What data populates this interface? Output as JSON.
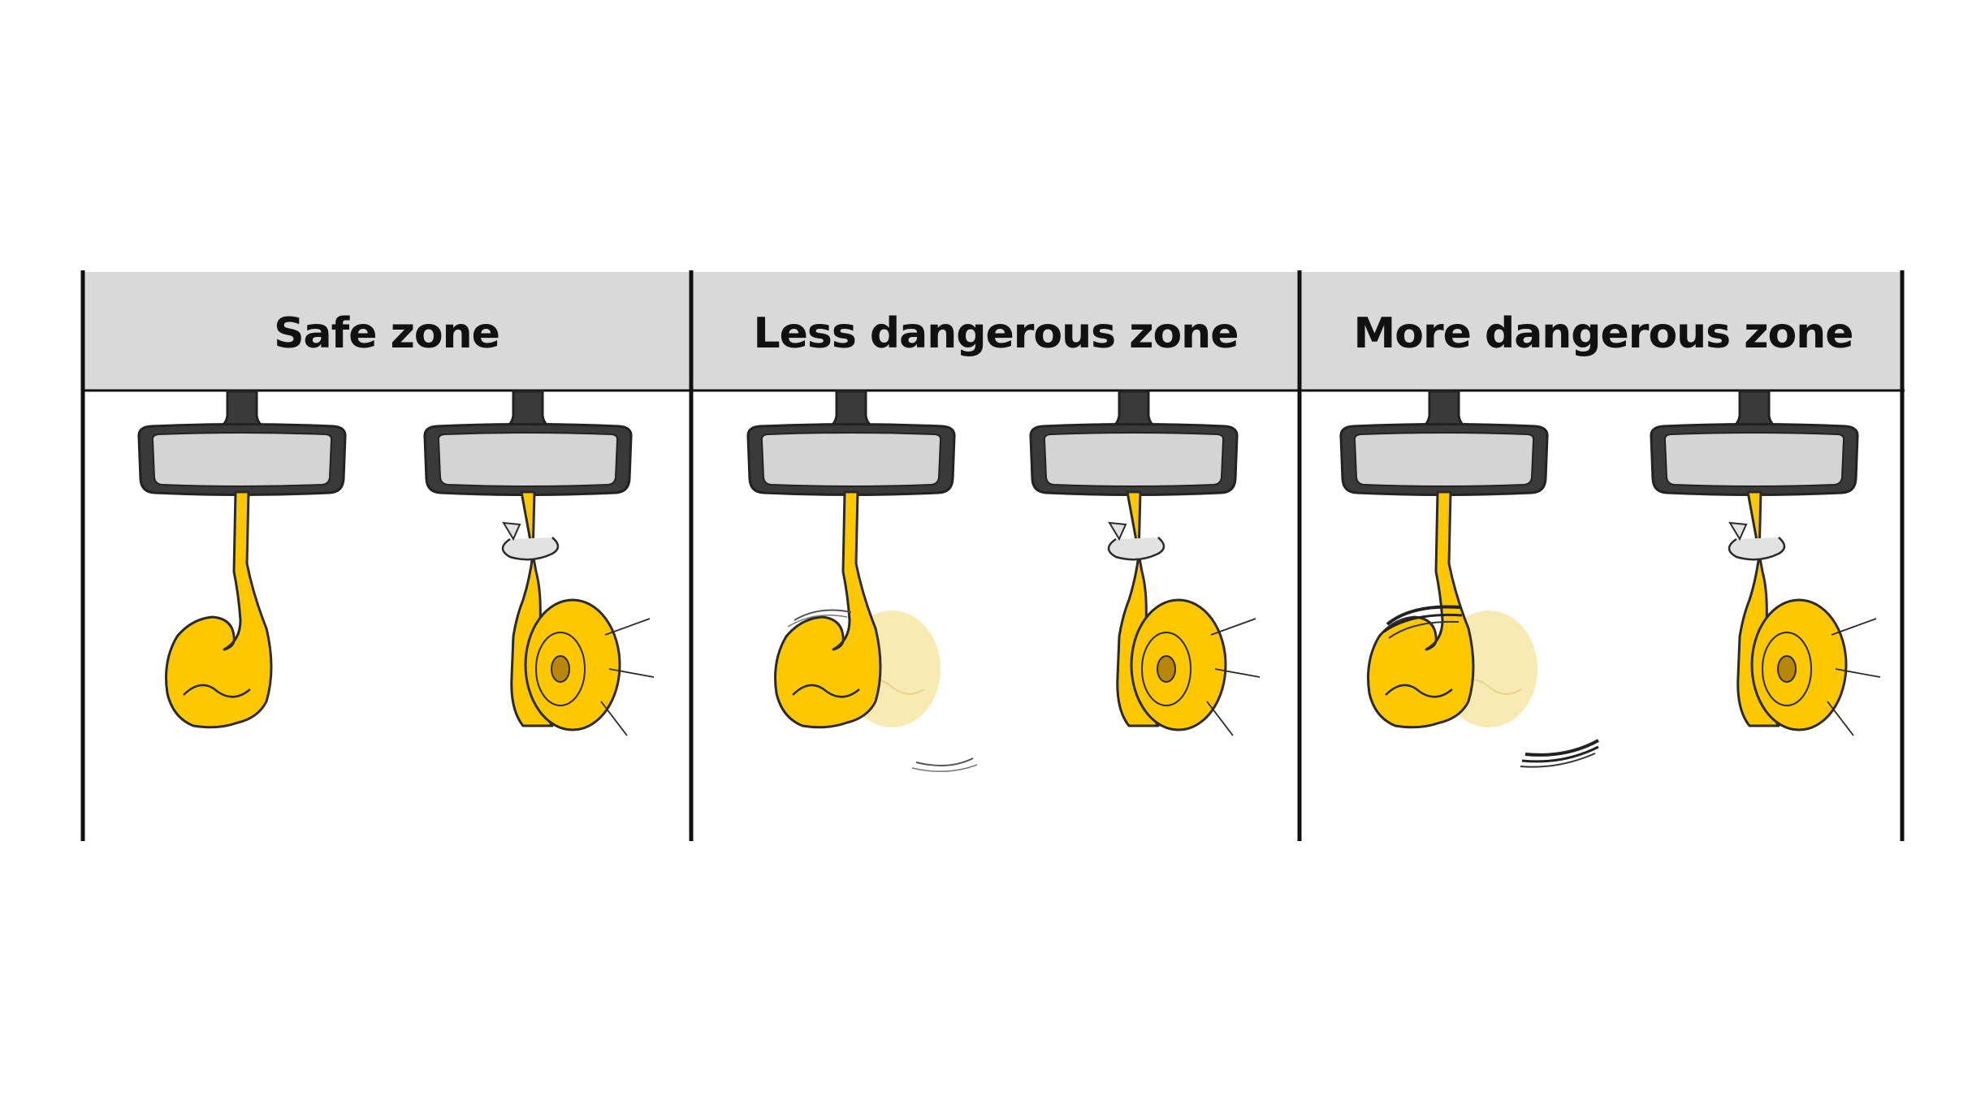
{
  "diagram": {
    "zones": [
      {
        "title": "Safe zone",
        "left_swing": "none",
        "right_rotation": true
      },
      {
        "title": "Less dangerous zone",
        "left_swing": "light",
        "right_rotation": true
      },
      {
        "title": "More dangerous zone",
        "left_swing": "heavy",
        "right_rotation": true
      }
    ]
  },
  "colors": {
    "header_bg": "#d9d9d9",
    "divider": "#111111",
    "mirror_frame": "#3a3a3a",
    "mirror_glass": "#d4d4d4",
    "ornament": "#fdc800",
    "ornament_outline": "#2a2a2a",
    "ornament_center": "#b8860b",
    "ghost": "#f7e6a6",
    "arrow": "#e2e2e2",
    "motion_lines": "#222222"
  },
  "icons": {
    "mirror": "rear-view-mirror-icon",
    "ornament": "hanging-air-freshener-icon",
    "rotation": "rotation-arrow-icon",
    "motion": "swing-motion-lines-icon"
  }
}
